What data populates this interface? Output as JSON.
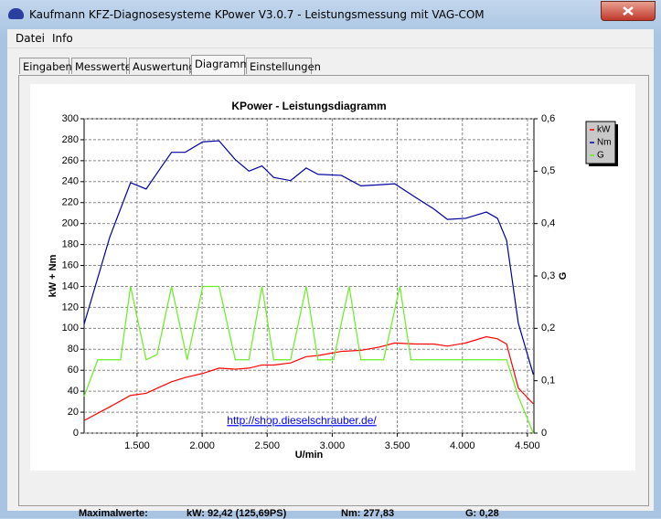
{
  "window": {
    "title": "Kaufmann KFZ-Diagnosesysteme  KPower V3.0.7 - Leistungsmessung mit VAG-COM"
  },
  "menu": [
    "Datei",
    "Info"
  ],
  "tabs": [
    "Eingaben",
    "Messwerte",
    "Auswertung",
    "Diagramm",
    "Einstellungen"
  ],
  "chart_data": {
    "type": "line",
    "title": "KPower - Leistungsdiagramm",
    "xlabel": "U/min",
    "ylabel": "kW + Nm",
    "y2label": "G",
    "annotation": "http://shop.dieselschrauber.de/",
    "xlim": [
      1093,
      4550
    ],
    "xticks": [
      {
        "value": 1500,
        "label": "1.500"
      },
      {
        "value": 2000,
        "label": "2.000"
      },
      {
        "value": 2500,
        "label": "2.500"
      },
      {
        "value": 3000,
        "label": "3.000"
      },
      {
        "value": 3500,
        "label": "3.500"
      },
      {
        "value": 4000,
        "label": "4.000"
      },
      {
        "value": 4500,
        "label": "4.500"
      }
    ],
    "ylim": [
      0,
      300
    ],
    "yticks": [
      0,
      20,
      40,
      60,
      80,
      100,
      120,
      140,
      160,
      180,
      200,
      220,
      240,
      260,
      280,
      300
    ],
    "y2lim": [
      0,
      0.6
    ],
    "y2ticks": [
      0,
      {
        "value": 0.1,
        "label": "0,1"
      },
      {
        "value": 0.2,
        "label": "0,2"
      },
      {
        "value": 0.3,
        "label": "0,3"
      },
      {
        "value": 0.4,
        "label": "0,4"
      },
      {
        "value": 0.5,
        "label": "0,5"
      },
      {
        "value": 0.6,
        "label": "0,6"
      }
    ],
    "grid": true,
    "legend": "top-right",
    "series": [
      {
        "name": "kW",
        "color": "#ff0000",
        "x": [
          1093,
          1290,
          1450,
          1570,
          1675,
          1765,
          1870,
          2005,
          2130,
          2255,
          2360,
          2460,
          2550,
          2680,
          2800,
          2890,
          3070,
          3220,
          3360,
          3480,
          3640,
          3780,
          3885,
          4025,
          4185,
          4270,
          4340,
          4430,
          4545
        ],
        "values": [
          12,
          25,
          36,
          38,
          44,
          49,
          53,
          57,
          62,
          61,
          62,
          65,
          65,
          67,
          73,
          74,
          78,
          79,
          82,
          86,
          85,
          85,
          83,
          86,
          92,
          90,
          85,
          43,
          28
        ]
      },
      {
        "name": "Nm",
        "color": "#0000a0",
        "x": [
          1093,
          1290,
          1450,
          1570,
          1675,
          1765,
          1870,
          2005,
          2130,
          2255,
          2360,
          2460,
          2550,
          2680,
          2800,
          2890,
          3070,
          3220,
          3360,
          3480,
          3640,
          3780,
          3885,
          4025,
          4185,
          4270,
          4340,
          4430,
          4545
        ],
        "values": [
          104,
          187,
          239,
          233,
          252,
          268,
          268,
          278,
          279,
          261,
          250,
          255,
          244,
          241,
          253,
          247,
          246,
          236,
          237,
          238,
          225,
          214,
          204,
          205,
          211,
          205,
          184,
          105,
          56
        ]
      },
      {
        "name": "G",
        "color": "#66ee22",
        "axis": "y2",
        "x": [
          1093,
          1198,
          1373,
          1450,
          1570,
          1654,
          1765,
          1885,
          2005,
          2130,
          2255,
          2360,
          2460,
          2550,
          2680,
          2800,
          2890,
          3010,
          3130,
          3220,
          3395,
          3520,
          3605,
          4340,
          4430,
          4545
        ],
        "values": [
          0.07,
          0.14,
          0.14,
          0.28,
          0.14,
          0.15,
          0.28,
          0.14,
          0.28,
          0.28,
          0.14,
          0.14,
          0.28,
          0.14,
          0.14,
          0.28,
          0.14,
          0.14,
          0.28,
          0.14,
          0.14,
          0.28,
          0.14,
          0.14,
          0.07,
          0
        ]
      }
    ]
  },
  "footer": {
    "label": "Maximalwerte:",
    "kw": "kW: 92,42 (125,69PS)",
    "nm": "Nm: 277,83",
    "g": "G: 0,28"
  }
}
